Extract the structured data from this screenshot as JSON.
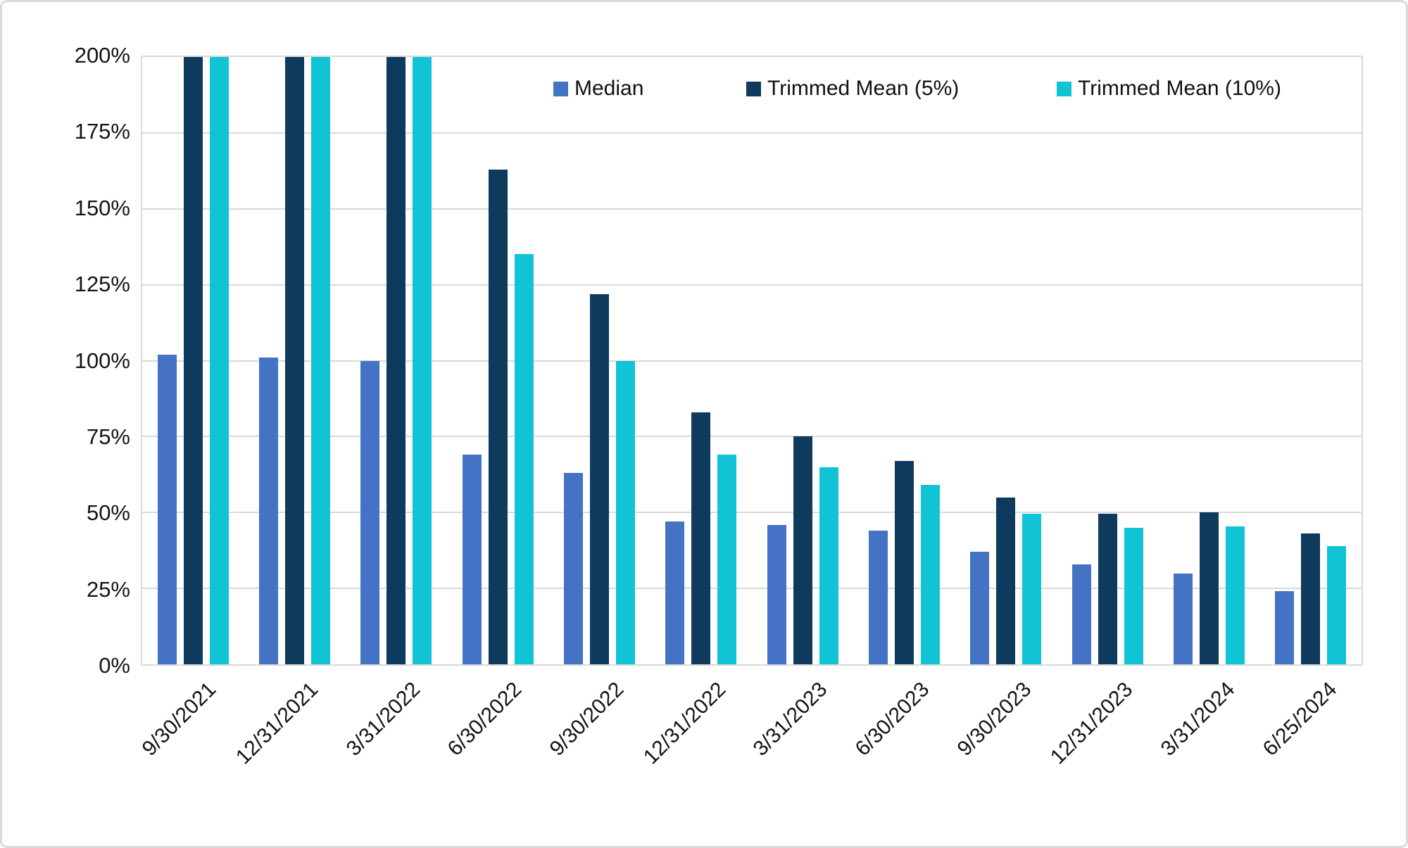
{
  "figure": {
    "background_color": "#ffffff",
    "border_color": "#d7dadd",
    "gridline_color": "#d9d9d9",
    "text_color": "#141414"
  },
  "legend": {
    "items": [
      {
        "label": "Median",
        "color": "#4472c4"
      },
      {
        "label": "Trimmed Mean (5%)",
        "color": "#0e3a5e"
      },
      {
        "label": "Trimmed Mean (10%)",
        "color": "#10c4d6"
      }
    ]
  },
  "chart_data": {
    "type": "bar",
    "title": "",
    "xlabel": "",
    "ylabel": "",
    "ylim": [
      0,
      200
    ],
    "y_tick_values": [
      0,
      25,
      50,
      75,
      100,
      125,
      150,
      175,
      200
    ],
    "y_tick_suffix": "%",
    "grid": "horizontal",
    "legend_position": "top-inside",
    "categories": [
      "9/30/2021",
      "12/31/2021",
      "3/31/2022",
      "6/30/2022",
      "9/30/2022",
      "12/31/2022",
      "3/31/2023",
      "6/30/2023",
      "9/30/2023",
      "12/31/2023",
      "3/31/2024",
      "6/25/2024"
    ],
    "series": [
      {
        "name": "Median",
        "color": "#4472c4",
        "values": [
          102,
          101,
          100,
          69,
          63,
          47,
          46,
          44,
          37,
          33,
          30,
          24
        ],
        "clipped_at_axis_max": [
          false,
          false,
          false,
          false,
          false,
          false,
          false,
          false,
          false,
          false,
          false,
          false
        ]
      },
      {
        "name": "Trimmed Mean (5%)",
        "color": "#0e3a5e",
        "values": [
          200,
          200,
          200,
          163,
          122,
          83,
          75,
          67,
          55,
          49.5,
          50,
          43
        ],
        "clipped_at_axis_max": [
          true,
          true,
          true,
          false,
          false,
          false,
          false,
          false,
          false,
          false,
          false,
          false
        ]
      },
      {
        "name": "Trimmed Mean (10%)",
        "color": "#10c4d6",
        "values": [
          200,
          200,
          200,
          135,
          100,
          69,
          65,
          59,
          49.5,
          45,
          45.5,
          39
        ],
        "clipped_at_axis_max": [
          true,
          true,
          true,
          false,
          false,
          false,
          false,
          false,
          false,
          false,
          false,
          false
        ]
      }
    ]
  }
}
